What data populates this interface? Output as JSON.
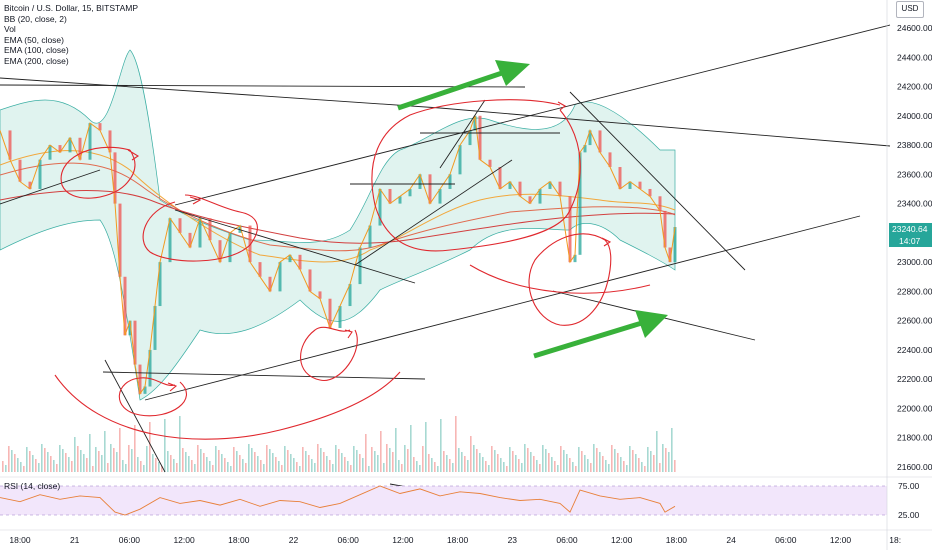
{
  "symbol_title": "Bitcoin / U.S. Dollar, 15, BITSTAMP",
  "indicators": [
    "BB (20, close, 2)",
    "Vol",
    "EMA (50, close)",
    "EMA (100, close)",
    "EMA (200, close)"
  ],
  "currency_badge": "USD",
  "price_badge": "23240.64",
  "countdown_badge": "14:07",
  "rsi_label": "RSI (14, close)",
  "rsi_ticks": [
    "75.00",
    "25.00"
  ],
  "colors": {
    "price_badge_bg": "#26a69a",
    "annotation_red": "#e0282e",
    "arrow_green": "#38b13a",
    "bb_fill": "#ddf2ee"
  },
  "chart_data": {
    "type": "candlestick",
    "title": "Bitcoin / U.S. Dollar, 15, BITSTAMP",
    "y_ticks": [
      24600,
      24400,
      24200,
      24000,
      23800,
      23600,
      23400,
      23200,
      23000,
      22800,
      22600,
      22400,
      22200,
      22000,
      21800,
      21600
    ],
    "y_tick_labels": [
      "24600.00",
      "24400.00",
      "24200.00",
      "24000.00",
      "23800.00",
      "23600.00",
      "23400.00",
      "23200.00",
      "23000.00",
      "22800.00",
      "22600.00",
      "22400.00",
      "22200.00",
      "22000.00",
      "21800.00",
      "21600.00"
    ],
    "ylim": [
      21600,
      24600
    ],
    "x_ticks": [
      "18:00",
      "21",
      "06:00",
      "12:00",
      "18:00",
      "22",
      "06:00",
      "12:00",
      "18:00",
      "23",
      "06:00",
      "12:00",
      "18:00",
      "24",
      "06:00",
      "12:00",
      "18:"
    ],
    "last_price": 23240.64,
    "close_path": [
      [
        0,
        23900
      ],
      [
        10,
        23700
      ],
      [
        20,
        23550
      ],
      [
        30,
        23500
      ],
      [
        40,
        23700
      ],
      [
        50,
        23800
      ],
      [
        60,
        23750
      ],
      [
        70,
        23850
      ],
      [
        80,
        23700
      ],
      [
        90,
        23950
      ],
      [
        100,
        23900
      ],
      [
        110,
        23750
      ],
      [
        115,
        23400
      ],
      [
        120,
        22900
      ],
      [
        125,
        22500
      ],
      [
        130,
        22600
      ],
      [
        135,
        22300
      ],
      [
        140,
        22100
      ],
      [
        145,
        22150
      ],
      [
        150,
        22400
      ],
      [
        155,
        22700
      ],
      [
        160,
        23000
      ],
      [
        170,
        23300
      ],
      [
        180,
        23200
      ],
      [
        190,
        23100
      ],
      [
        200,
        23300
      ],
      [
        210,
        23150
      ],
      [
        220,
        23000
      ],
      [
        230,
        23200
      ],
      [
        240,
        23250
      ],
      [
        250,
        23000
      ],
      [
        260,
        22900
      ],
      [
        270,
        22800
      ],
      [
        280,
        23000
      ],
      [
        290,
        23050
      ],
      [
        300,
        22950
      ],
      [
        310,
        22800
      ],
      [
        320,
        22750
      ],
      [
        330,
        22550
      ],
      [
        340,
        22700
      ],
      [
        350,
        22850
      ],
      [
        360,
        23100
      ],
      [
        370,
        23250
      ],
      [
        380,
        23500
      ],
      [
        390,
        23400
      ],
      [
        400,
        23450
      ],
      [
        410,
        23500
      ],
      [
        420,
        23600
      ],
      [
        430,
        23400
      ],
      [
        440,
        23500
      ],
      [
        450,
        23600
      ],
      [
        460,
        23800
      ],
      [
        470,
        23900
      ],
      [
        475,
        24000
      ],
      [
        480,
        23700
      ],
      [
        490,
        23650
      ],
      [
        500,
        23500
      ],
      [
        510,
        23550
      ],
      [
        520,
        23450
      ],
      [
        530,
        23400
      ],
      [
        540,
        23500
      ],
      [
        550,
        23550
      ],
      [
        560,
        23450
      ],
      [
        570,
        23000
      ],
      [
        575,
        23050
      ],
      [
        580,
        23750
      ],
      [
        585,
        23800
      ],
      [
        590,
        23900
      ],
      [
        600,
        23750
      ],
      [
        610,
        23650
      ],
      [
        620,
        23500
      ],
      [
        630,
        23550
      ],
      [
        640,
        23500
      ],
      [
        650,
        23450
      ],
      [
        660,
        23350
      ],
      [
        665,
        23100
      ],
      [
        670,
        23000
      ],
      [
        675,
        23240
      ]
    ],
    "rsi_levels": [
      75,
      25
    ],
    "rsi_path": [
      [
        0,
        55
      ],
      [
        20,
        48
      ],
      [
        40,
        60
      ],
      [
        60,
        52
      ],
      [
        80,
        58
      ],
      [
        100,
        55
      ],
      [
        115,
        30
      ],
      [
        125,
        25
      ],
      [
        140,
        35
      ],
      [
        160,
        55
      ],
      [
        180,
        45
      ],
      [
        200,
        50
      ],
      [
        220,
        42
      ],
      [
        240,
        52
      ],
      [
        260,
        40
      ],
      [
        280,
        50
      ],
      [
        300,
        48
      ],
      [
        320,
        38
      ],
      [
        340,
        45
      ],
      [
        360,
        60
      ],
      [
        380,
        75
      ],
      [
        400,
        62
      ],
      [
        420,
        70
      ],
      [
        440,
        58
      ],
      [
        460,
        65
      ],
      [
        480,
        62
      ],
      [
        500,
        55
      ],
      [
        520,
        50
      ],
      [
        540,
        52
      ],
      [
        560,
        45
      ],
      [
        570,
        30
      ],
      [
        580,
        68
      ],
      [
        600,
        58
      ],
      [
        620,
        52
      ],
      [
        640,
        55
      ],
      [
        660,
        45
      ],
      [
        665,
        30
      ],
      [
        675,
        40
      ]
    ]
  }
}
